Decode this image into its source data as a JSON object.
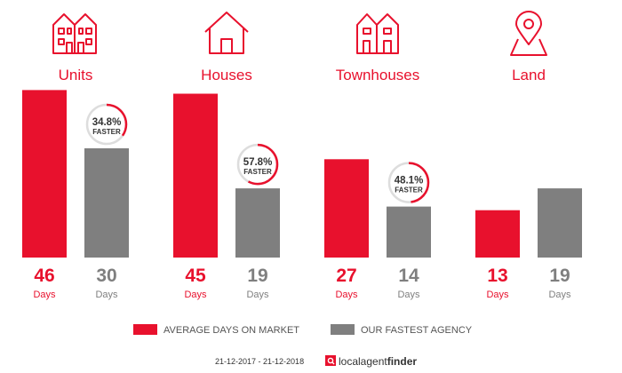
{
  "chart_data": {
    "type": "bar",
    "categories": [
      "Units",
      "Houses",
      "Townhouses",
      "Land"
    ],
    "series": [
      {
        "name": "AVERAGE DAYS ON MARKET",
        "color": "#e8112d",
        "values": [
          46,
          45,
          27,
          13
        ]
      },
      {
        "name": "OUR FASTEST AGENCY",
        "color": "#7f7f7f",
        "values": [
          30,
          19,
          14,
          19
        ]
      }
    ],
    "value_unit": "Days",
    "badges": [
      {
        "category": "Units",
        "percent_label": "34.8%",
        "word": "FASTER",
        "fraction": 0.348
      },
      {
        "category": "Houses",
        "percent_label": "57.8%",
        "word": "FASTER",
        "fraction": 0.578
      },
      {
        "category": "Townhouses",
        "percent_label": "48.1%",
        "word": "FASTER",
        "fraction": 0.481
      }
    ],
    "icons": [
      "units-icon",
      "house-icon",
      "townhouses-icon",
      "location-pin-icon"
    ],
    "legend_position": "bottom-center"
  },
  "footer": {
    "date_range": "21-12-2017 - 21-12-2018",
    "brand_local": "localagent",
    "brand_finder": "finder"
  }
}
